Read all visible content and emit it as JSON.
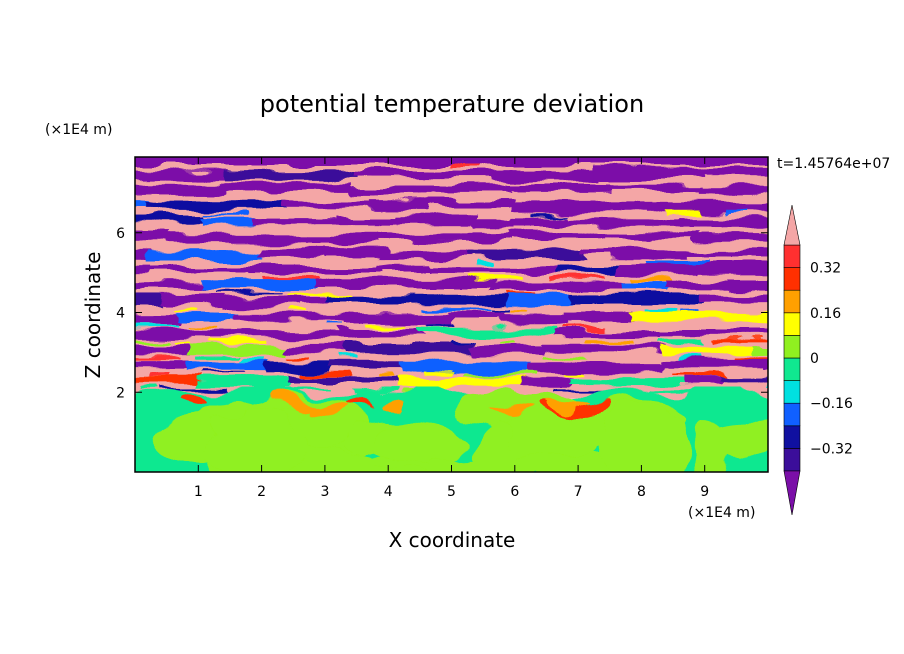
{
  "chart_data": {
    "type": "heatmap",
    "title": "potential temperature deviation",
    "xlabel": "X coordinate",
    "ylabel": "Z coordinate",
    "x_unit": "(×1E4 m)",
    "y_unit": "(×1E4 m)",
    "time_label": "t=1.45764e+07",
    "xlim": [
      0,
      10
    ],
    "ylim": [
      0,
      7.9
    ],
    "x_ticks": [
      "1",
      "2",
      "3",
      "4",
      "5",
      "6",
      "7",
      "8",
      "9"
    ],
    "y_ticks": [
      "2",
      "4",
      "6"
    ],
    "inversion_height": 2.0,
    "colorbar": {
      "tick_labels": [
        "0.32",
        "0.16",
        "0",
        "-0.16",
        "-0.32"
      ],
      "levels": [
        -0.4,
        -0.32,
        -0.24,
        -0.16,
        -0.08,
        0,
        0.08,
        0.16,
        0.24,
        0.32,
        0.4
      ],
      "colors": [
        "#7b0fa8",
        "#3b0e9a",
        "#1010a0",
        "#1060ff",
        "#00e0e0",
        "#10e890",
        "#90f020",
        "#ffff00",
        "#ffa000",
        "#ff3000",
        "#ff3030",
        "#f4a6a6"
      ],
      "extend": "both"
    }
  }
}
